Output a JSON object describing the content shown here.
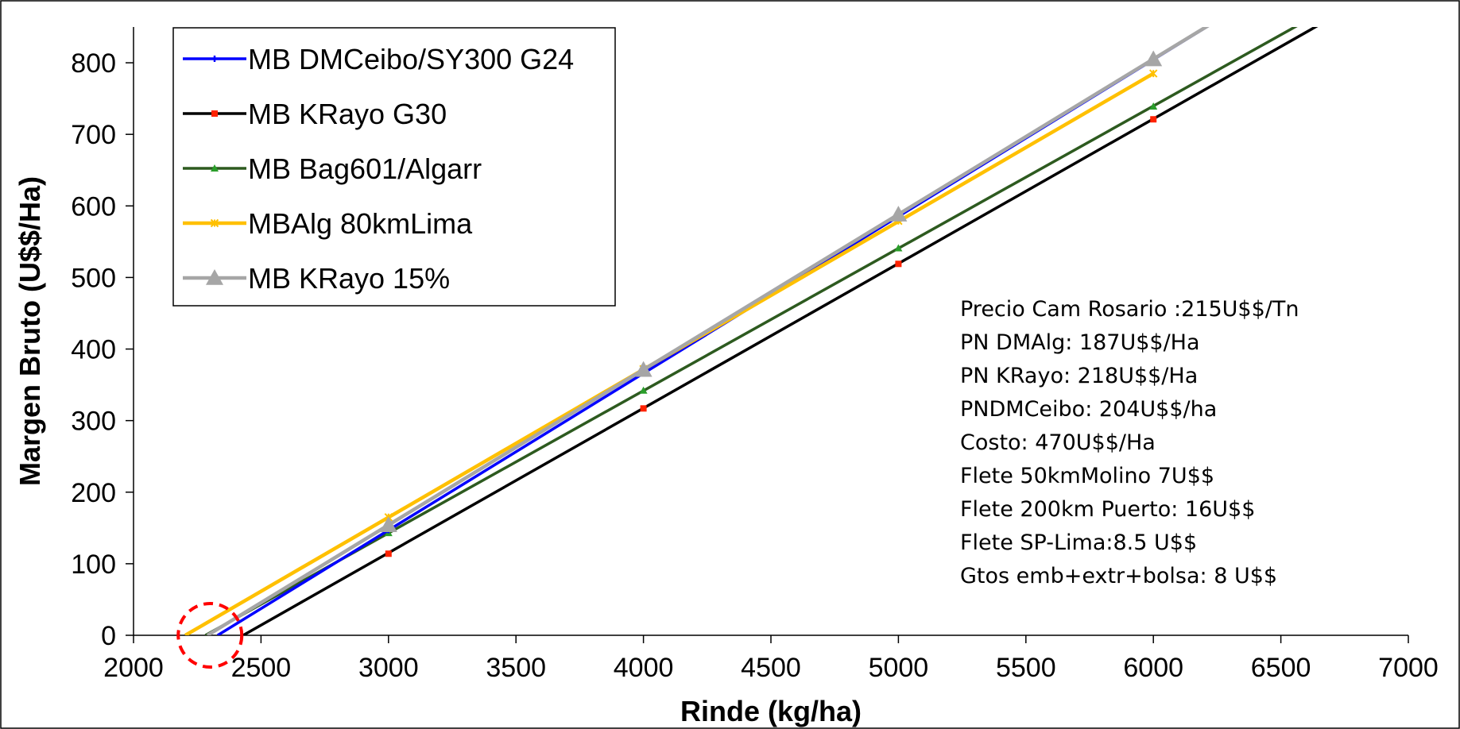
{
  "chart_data": {
    "type": "line",
    "xlabel": "Rinde (kg/ha)",
    "ylabel": "Margen Bruto (U$$/Ha)",
    "xlim": [
      2000,
      7000
    ],
    "ylim": [
      0,
      850
    ],
    "xticks": [
      2000,
      2500,
      3000,
      3500,
      4000,
      4500,
      5000,
      5500,
      6000,
      6500,
      7000
    ],
    "yticks": [
      0,
      100,
      200,
      300,
      400,
      500,
      600,
      700,
      800
    ],
    "grid": false,
    "legend_position": "top-left",
    "series": [
      {
        "name": "MB DMCeibo/SY300 G24",
        "color": "#0000ff",
        "marker": "plus",
        "points": [
          [
            3000,
            147
          ],
          [
            4000,
            366
          ],
          [
            5000,
            585
          ],
          [
            6000,
            804
          ]
        ],
        "line": [
          [
            2330,
            0
          ],
          [
            6240,
            857
          ]
        ]
      },
      {
        "name": "MB KRayo G30",
        "color": "#000000",
        "marker": "square",
        "markerColor": "#ff2200",
        "points": [
          [
            3000,
            114
          ],
          [
            4000,
            317
          ],
          [
            5000,
            519
          ],
          [
            6000,
            721
          ]
        ],
        "line": [
          [
            2430,
            0
          ],
          [
            6650,
            853
          ]
        ]
      },
      {
        "name": "MB Bag601/Algarr",
        "color": "#2d5a1f",
        "marker": "triangle-small",
        "markerColor": "#2a9d2a",
        "points": [
          [
            3000,
            143
          ],
          [
            4000,
            342
          ],
          [
            5000,
            541
          ],
          [
            6000,
            739
          ]
        ],
        "line": [
          [
            2282,
            0
          ],
          [
            6570,
            853
          ]
        ]
      },
      {
        "name": "MBAlg 80kmLima",
        "color": "#ffc000",
        "marker": "star",
        "points": [
          [
            3000,
            165
          ],
          [
            4000,
            372
          ],
          [
            5000,
            579
          ],
          [
            6000,
            785
          ]
        ],
        "line": [
          [
            2203,
            0
          ],
          [
            6000,
            785
          ]
        ]
      },
      {
        "name": "MB KRayo 15%",
        "color": "#a6a6a6",
        "marker": "triangle",
        "points": [
          [
            3000,
            154
          ],
          [
            4000,
            371
          ],
          [
            5000,
            588
          ],
          [
            6000,
            805
          ]
        ],
        "line": [
          [
            2290,
            0
          ],
          [
            6220,
            853
          ]
        ]
      }
    ],
    "annotations": [
      "Precio Cam Rosario :215U$$/Tn",
      "PN DMAlg: 187U$$/Ha",
      "PN KRayo: 218U$$/Ha",
      "PNDMCeibo: 204U$$/ha",
      "Costo: 470U$$/Ha",
      "Flete 50kmMolino 7U$$",
      "Flete 200km Puerto: 16U$$",
      "Flete SP-Lima:8.5 U$$",
      "Gtos emb+extr+bolsa: 8 U$$"
    ],
    "highlight_circle": {
      "x": 2300,
      "y": 0,
      "color": "#ff0000",
      "style": "dashed"
    }
  }
}
